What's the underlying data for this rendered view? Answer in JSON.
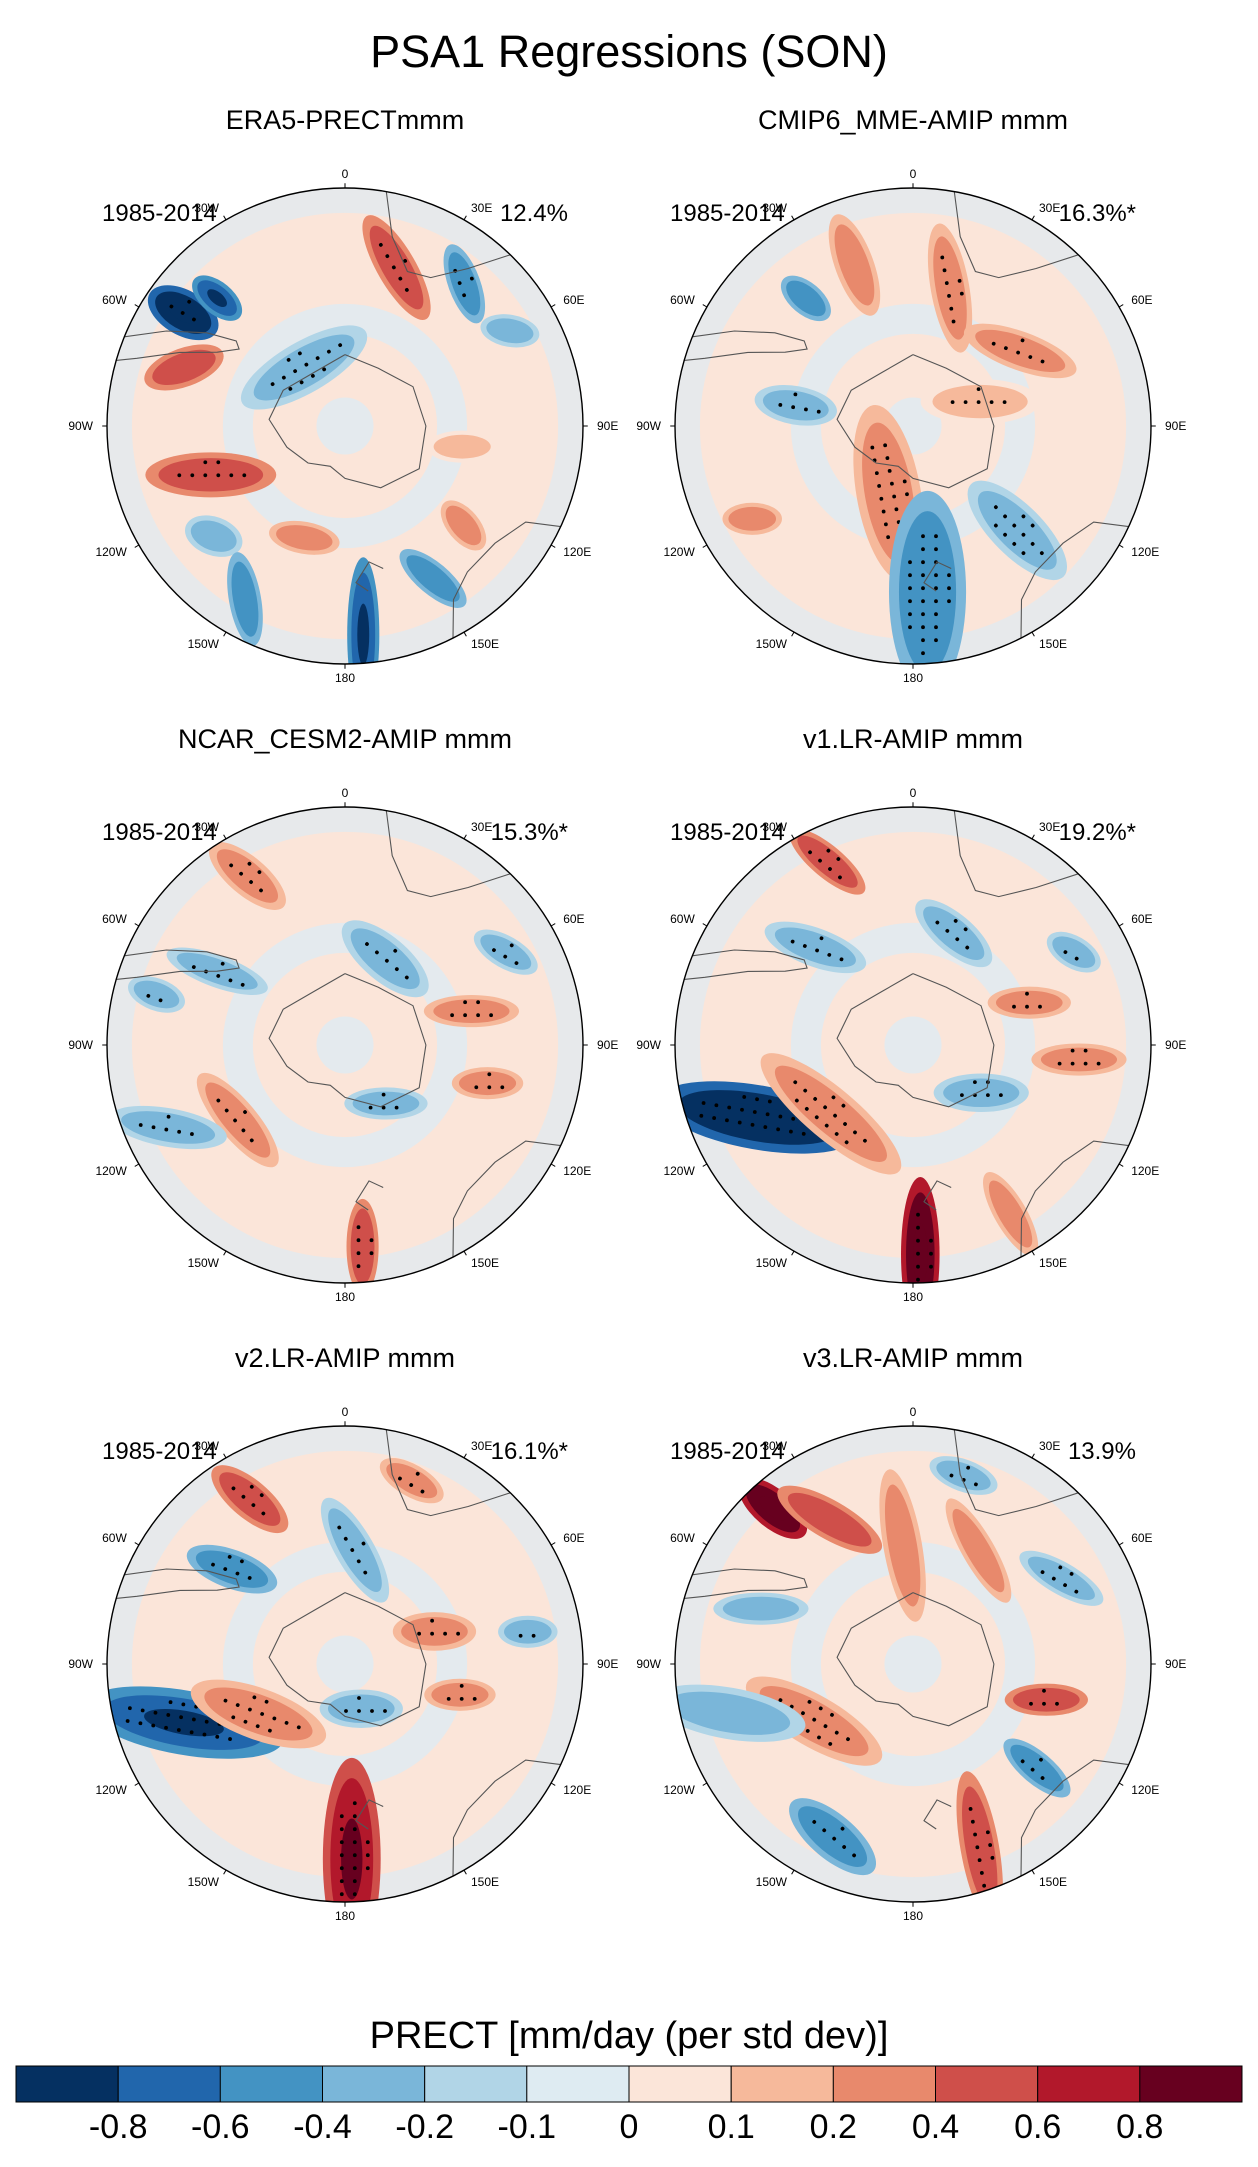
{
  "figure": {
    "title": "PSA1 Regressions (SON)"
  },
  "panels": [
    {
      "title": "ERA5-PRECTmmm",
      "years": "1985-2014",
      "variance": "12.4%",
      "pattern": "obs"
    },
    {
      "title": "CMIP6_MME-AMIP  mmm",
      "years": "1985-2014",
      "variance": "16.3%*",
      "pattern": "mme"
    },
    {
      "title": "NCAR_CESM2-AMIP  mmm",
      "years": "1985-2014",
      "variance": "15.3%*",
      "pattern": "cesm"
    },
    {
      "title": "v1.LR-AMIP  mmm",
      "years": "1985-2014",
      "variance": "19.2%*",
      "pattern": "v1"
    },
    {
      "title": "v2.LR-AMIP  mmm",
      "years": "1985-2014",
      "variance": "16.1%*",
      "pattern": "v2"
    },
    {
      "title": "v3.LR-AMIP  mmm",
      "years": "1985-2014",
      "variance": "13.9%",
      "pattern": "v3"
    }
  ],
  "longitude_labels": [
    "0",
    "30E",
    "60E",
    "90E",
    "120E",
    "150E",
    "180",
    "150W",
    "120W",
    "90W",
    "60W",
    "30W"
  ],
  "colorbar": {
    "label": "PRECT [mm/day (per std dev)]",
    "ticks": [
      "-0.8",
      "-0.6",
      "-0.4",
      "-0.2",
      "-0.1",
      "0",
      "0.1",
      "0.2",
      "0.4",
      "0.6",
      "0.8"
    ],
    "colors": [
      "#053061",
      "#2166ac",
      "#4393c3",
      "#7ab6d9",
      "#b1d5e7",
      "#deebf2",
      "#fbe5d9",
      "#f6b99b",
      "#e8896c",
      "#cf4f4a",
      "#b2182b",
      "#67001f"
    ]
  }
}
